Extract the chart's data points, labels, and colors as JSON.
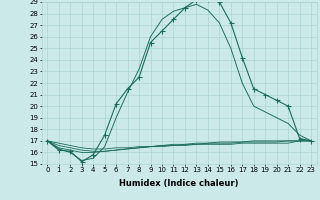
{
  "xlabel": "Humidex (Indice chaleur)",
  "ylabel": "",
  "bg_color": "#cce9e9",
  "grid_color": "#aad4d4",
  "line_color": "#1a6b5a",
  "x_hours": [
    0,
    1,
    2,
    3,
    4,
    5,
    6,
    7,
    8,
    9,
    10,
    11,
    12,
    13,
    14,
    15,
    16,
    17,
    18,
    19,
    20,
    21,
    22,
    23
  ],
  "main_curve": [
    17.0,
    16.2,
    16.1,
    15.2,
    15.8,
    17.5,
    20.2,
    21.5,
    22.5,
    25.5,
    26.5,
    27.5,
    28.5,
    29.2,
    29.3,
    29.0,
    27.2,
    24.2,
    21.5,
    21.0,
    20.5,
    20.0,
    17.2,
    17.0
  ],
  "smooth_curve": [
    17.0,
    16.3,
    16.0,
    15.3,
    15.5,
    16.5,
    19.0,
    21.2,
    23.2,
    26.0,
    27.5,
    28.2,
    28.5,
    28.8,
    28.3,
    27.2,
    25.0,
    22.0,
    20.0,
    19.5,
    19.0,
    18.5,
    17.5,
    17.0
  ],
  "flat_line1": [
    17.0,
    16.4,
    16.2,
    16.0,
    16.0,
    16.1,
    16.2,
    16.3,
    16.4,
    16.5,
    16.5,
    16.6,
    16.6,
    16.7,
    16.7,
    16.7,
    16.7,
    16.8,
    16.8,
    16.8,
    16.8,
    16.8,
    17.0,
    17.0
  ],
  "flat_line2": [
    17.0,
    16.6,
    16.4,
    16.2,
    16.1,
    16.1,
    16.2,
    16.3,
    16.4,
    16.5,
    16.6,
    16.6,
    16.7,
    16.7,
    16.8,
    16.8,
    16.8,
    16.9,
    16.9,
    16.9,
    16.9,
    17.0,
    17.0,
    17.0
  ],
  "flat_line3": [
    17.0,
    16.8,
    16.6,
    16.4,
    16.3,
    16.3,
    16.4,
    16.4,
    16.5,
    16.5,
    16.6,
    16.7,
    16.7,
    16.8,
    16.8,
    16.9,
    16.9,
    16.9,
    17.0,
    17.0,
    17.0,
    17.0,
    17.0,
    17.0
  ],
  "ylim": [
    15,
    29
  ],
  "yticks": [
    15,
    16,
    17,
    18,
    19,
    20,
    21,
    22,
    23,
    24,
    25,
    26,
    27,
    28,
    29
  ],
  "xticks": [
    0,
    1,
    2,
    3,
    4,
    5,
    6,
    7,
    8,
    9,
    10,
    11,
    12,
    13,
    14,
    15,
    16,
    17,
    18,
    19,
    20,
    21,
    22,
    23
  ],
  "tick_fontsize": 5.0,
  "label_fontsize": 6.0,
  "markersize": 2.0,
  "linewidth": 0.8
}
